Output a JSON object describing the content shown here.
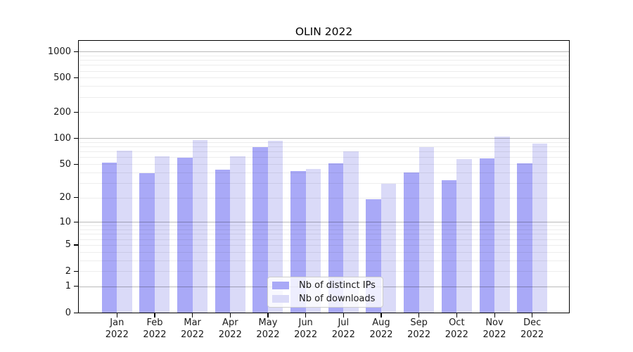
{
  "title": "OLIN 2022",
  "chart_data": {
    "type": "bar",
    "title": "OLIN 2022",
    "categories": [
      "Jan 2022",
      "Feb 2022",
      "Mar 2022",
      "Apr 2022",
      "May 2022",
      "Jun 2022",
      "Jul 2022",
      "Aug 2022",
      "Sep 2022",
      "Oct 2022",
      "Nov 2022",
      "Dec 2022"
    ],
    "x_tick_months": [
      "Jan",
      "Feb",
      "Mar",
      "Apr",
      "May",
      "Jun",
      "Jul",
      "Aug",
      "Sep",
      "Oct",
      "Nov",
      "Dec"
    ],
    "x_tick_year": "2022",
    "series": [
      {
        "name": "Nb of distinct IPs",
        "key": "distinct-ips",
        "color": "#a9a9f7",
        "values": [
          52,
          39,
          59,
          43,
          79,
          41,
          51,
          19,
          40,
          32,
          58,
          51
        ]
      },
      {
        "name": "Nb of downloads",
        "key": "downloads",
        "color": "#dadaf8",
        "values": [
          72,
          62,
          96,
          62,
          93,
          44,
          71,
          29,
          79,
          57,
          104,
          87
        ]
      }
    ],
    "xlabel": "",
    "ylabel": "",
    "yscale": "log(1+x)",
    "yticks": [
      1000,
      500,
      200,
      100,
      50,
      20,
      10,
      5,
      2,
      1,
      0
    ],
    "ylim": [
      0,
      1330
    ],
    "grid": true,
    "legend_position": "lower center",
    "colors": {
      "axis": "#000000",
      "major_grid": "#bcbcbc",
      "minor_grid": "#ededed",
      "text": "#1a1a1a"
    }
  }
}
